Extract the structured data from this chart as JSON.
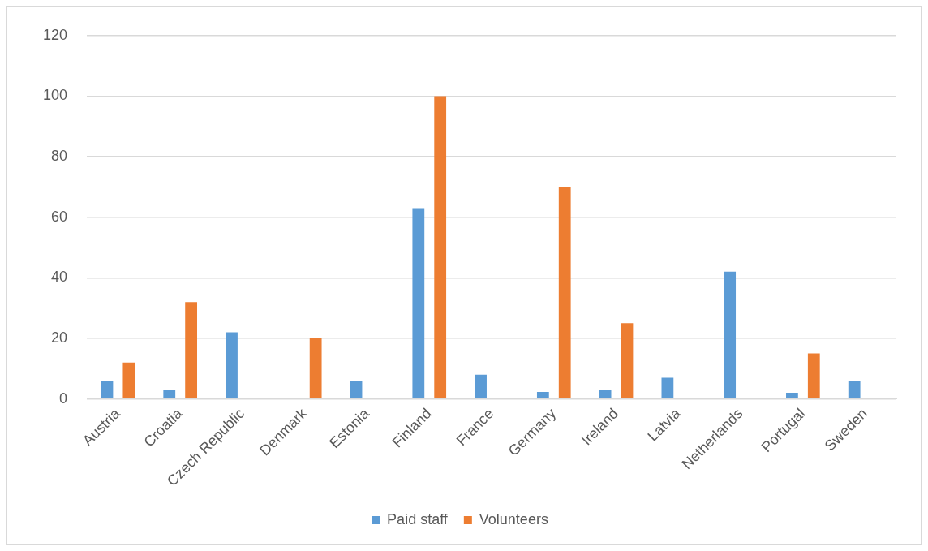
{
  "chart_data": {
    "type": "bar",
    "categories": [
      "Austria",
      "Croatia",
      "Czech Republic",
      "Denmark",
      "Estonia",
      "Finland",
      "France",
      "Germany",
      "Ireland",
      "Latvia",
      "Netherlands",
      "Portugal",
      "Sweden"
    ],
    "series": [
      {
        "name": "Paid staff",
        "color": "#5b9bd5",
        "values": [
          6,
          3,
          22,
          null,
          6,
          63,
          8,
          2.3,
          3,
          7,
          42,
          2,
          6
        ]
      },
      {
        "name": "Volunteers",
        "color": "#ed7d31",
        "values": [
          12,
          32,
          null,
          20,
          null,
          100,
          null,
          70,
          25,
          null,
          null,
          15,
          null
        ]
      }
    ],
    "ylim": [
      0,
      120
    ],
    "yticks": [
      0,
      20,
      40,
      60,
      80,
      100,
      120
    ],
    "grid": "y",
    "legend": "bottom"
  }
}
